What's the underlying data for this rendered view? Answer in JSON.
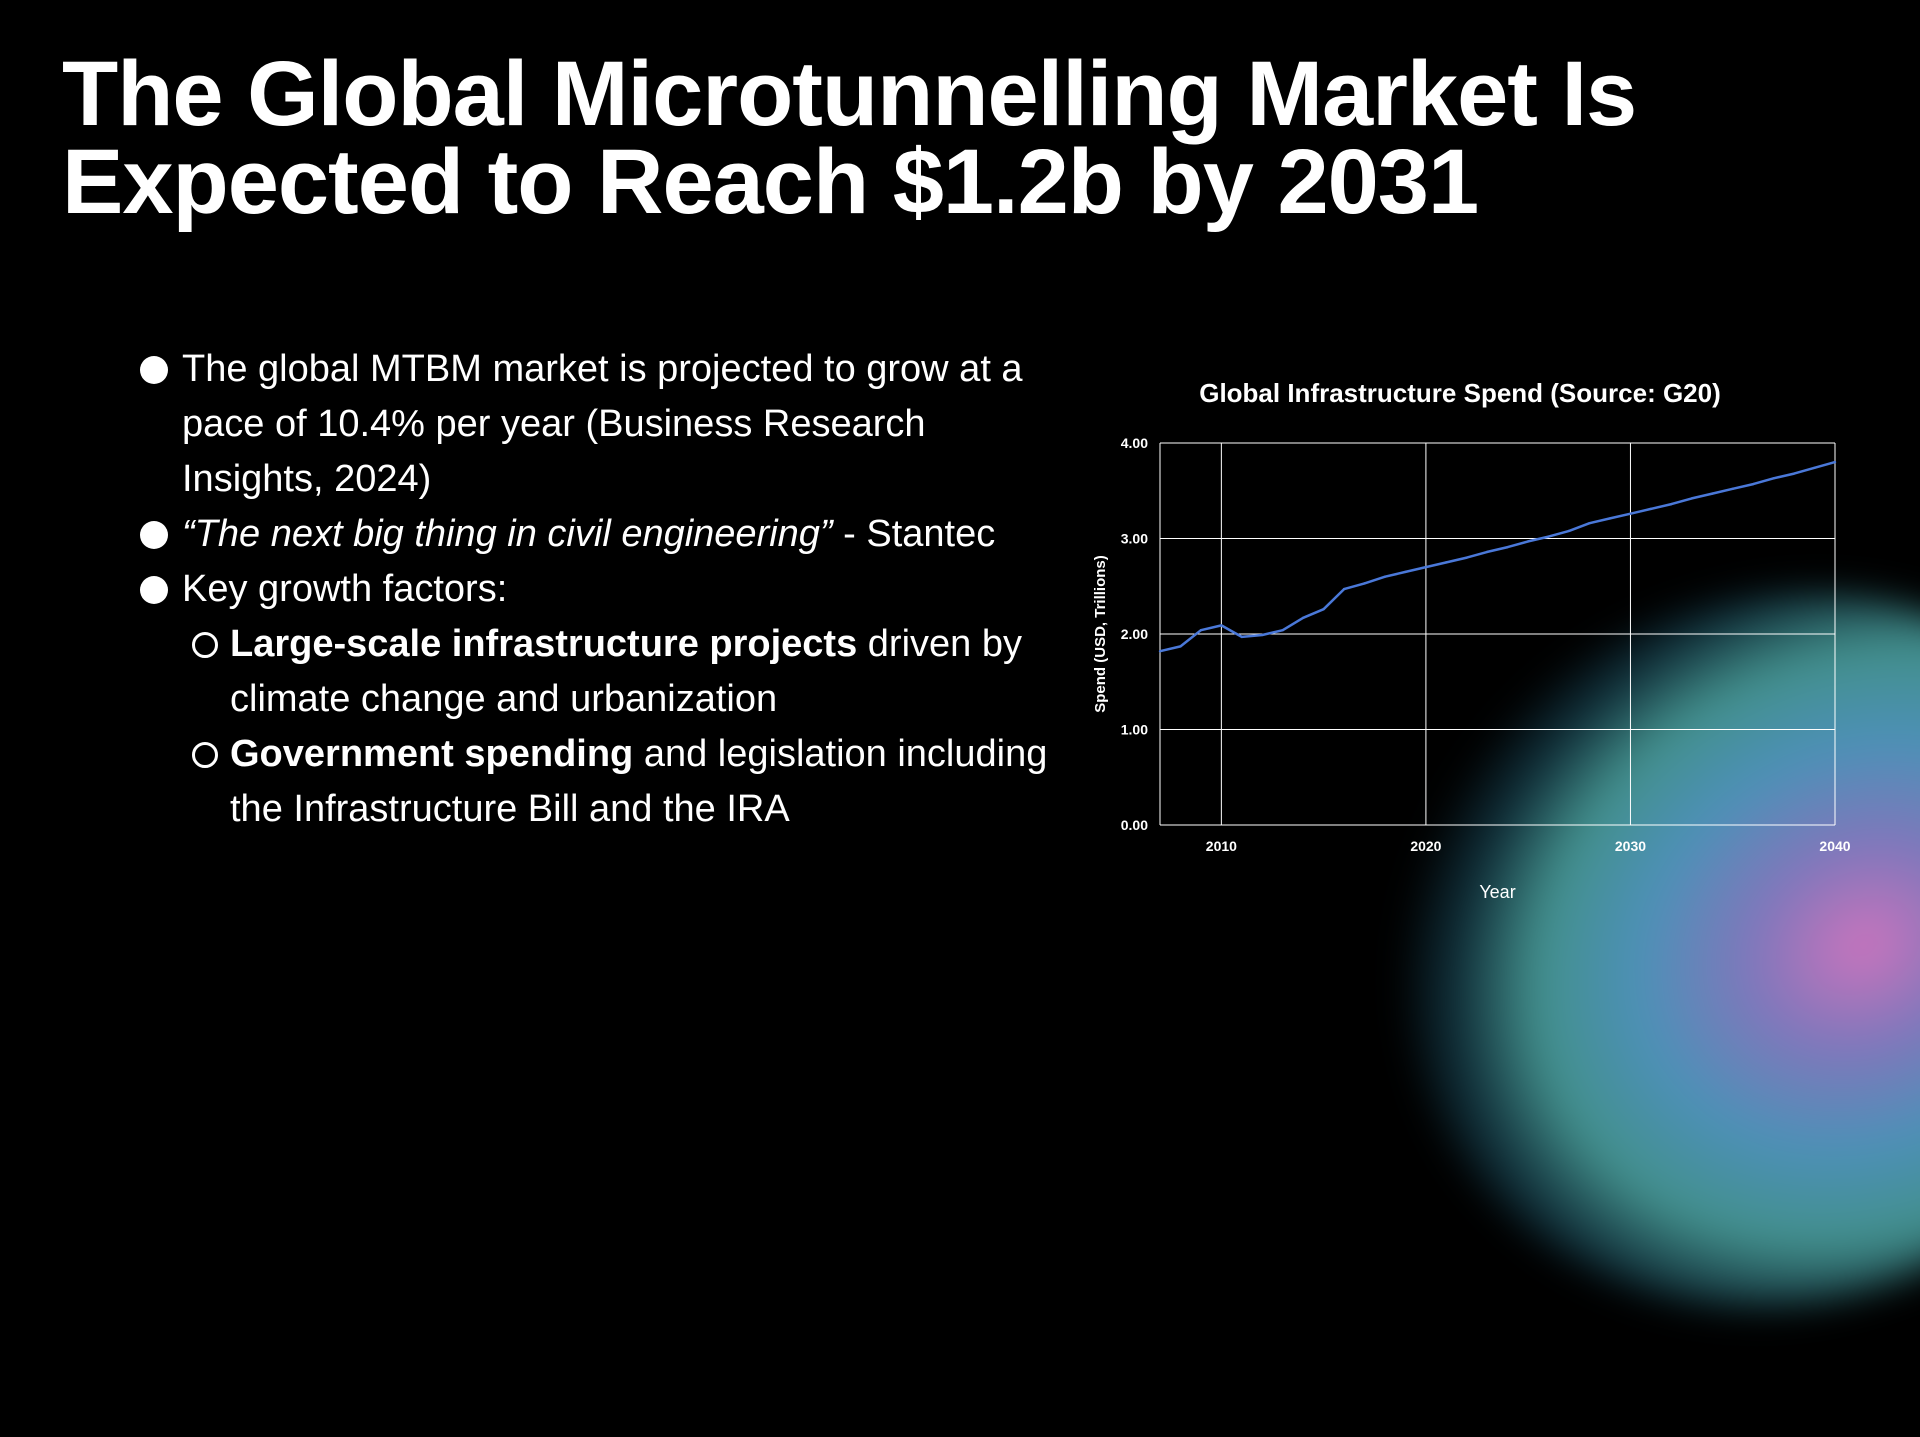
{
  "slide": {
    "title_line1": "The Global Microtunnelling Market Is",
    "title_line2": "Expected to Reach $1.2b by 2031"
  },
  "bullets": {
    "b1": "The global MTBM market is projected to grow at a pace of 10.4% per year (Business Research Insights, 2024)",
    "b2_quote": "“The next big thing in civil engineering”",
    "b2_attr": " - Stantec",
    "b3": "Key growth factors:",
    "s1_bold": "Large-scale infrastructure projects",
    "s1_rest": " driven by climate change and urbanization",
    "s2_bold": "Government spending",
    "s2_rest": " and legislation including the Infrastructure Bill and the IRA"
  },
  "colors": {
    "line": "#4a78d8",
    "grid": "#ffffff",
    "background": "#000000"
  },
  "chart_data": {
    "type": "line",
    "title": "Global Infrastructure Spend (Source: G20)",
    "xlabel": "Year",
    "ylabel": "Spend (USD, Trillions)",
    "xlim": [
      2007,
      2040
    ],
    "ylim": [
      0,
      4
    ],
    "x_ticks": [
      "2010",
      "2020",
      "2030",
      "2040"
    ],
    "y_ticks": [
      "0.00",
      "1.00",
      "2.00",
      "3.00",
      "4.00"
    ],
    "grid": true,
    "series": [
      {
        "x": [
          2007,
          2008,
          2009,
          2010,
          2011,
          2012,
          2013,
          2014,
          2015,
          2016,
          2017,
          2018,
          2019,
          2020,
          2021,
          2022,
          2023,
          2024,
          2025,
          2026,
          2027,
          2028,
          2029,
          2030,
          2031,
          2032,
          2033,
          2034,
          2035,
          2036,
          2037,
          2038,
          2039,
          2040
        ],
        "values": [
          1.82,
          1.87,
          2.04,
          2.09,
          1.97,
          1.99,
          2.04,
          2.17,
          2.26,
          2.47,
          2.53,
          2.6,
          2.65,
          2.7,
          2.75,
          2.8,
          2.86,
          2.91,
          2.97,
          3.02,
          3.08,
          3.16,
          3.21,
          3.26,
          3.31,
          3.36,
          3.42,
          3.47,
          3.52,
          3.57,
          3.63,
          3.68,
          3.74,
          3.8
        ]
      }
    ]
  }
}
